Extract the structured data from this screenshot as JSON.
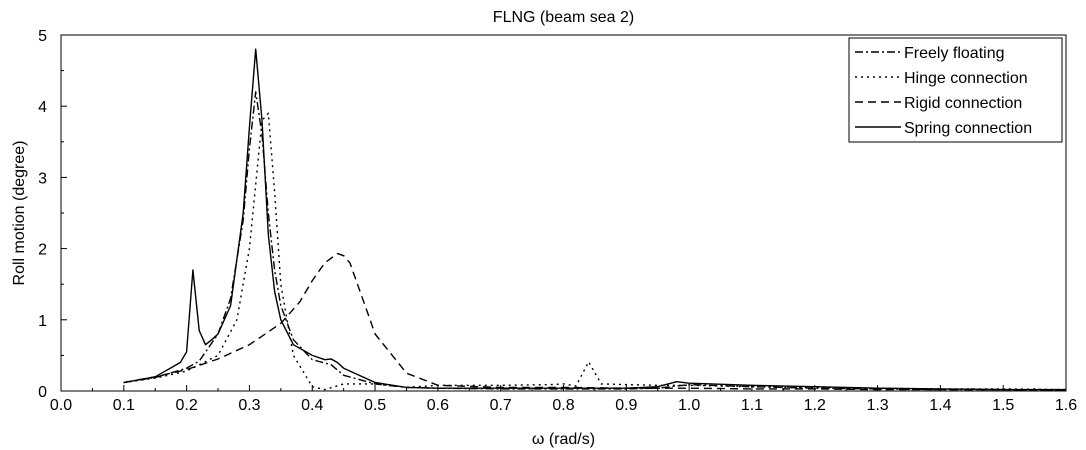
{
  "chart_data": {
    "type": "line",
    "title": "FLNG (beam sea 2)",
    "xlabel": "ω (rad/s)",
    "ylabel": "Roll motion (degree)",
    "xlim": [
      0.0,
      1.6
    ],
    "ylim": [
      0,
      5
    ],
    "x_ticks": [
      "0.0",
      "0.1",
      "0.2",
      "0.3",
      "0.4",
      "0.5",
      "0.6",
      "0.7",
      "0.8",
      "0.9",
      "1.0",
      "1.1",
      "1.2",
      "1.3",
      "1.4",
      "1.5",
      "1.6"
    ],
    "y_ticks": [
      "0",
      "1",
      "2",
      "3",
      "4",
      "5"
    ],
    "grid": false,
    "legend_position": "top-right",
    "series": [
      {
        "name": "Freely floating",
        "dash": "dashdot",
        "x": [
          0.1,
          0.15,
          0.2,
          0.22,
          0.25,
          0.27,
          0.29,
          0.3,
          0.31,
          0.32,
          0.33,
          0.34,
          0.35,
          0.37,
          0.4,
          0.43,
          0.45,
          0.5,
          0.55,
          0.6,
          0.7,
          0.8,
          0.9,
          0.95,
          0.98,
          1.0,
          1.1,
          1.2,
          1.3,
          1.4,
          1.5,
          1.6
        ],
        "y": [
          0.12,
          0.19,
          0.32,
          0.42,
          0.8,
          1.3,
          2.4,
          3.4,
          4.2,
          3.6,
          2.5,
          1.7,
          1.2,
          0.72,
          0.44,
          0.37,
          0.22,
          0.1,
          0.05,
          0.04,
          0.03,
          0.03,
          0.03,
          0.04,
          0.07,
          0.09,
          0.06,
          0.04,
          0.03,
          0.02,
          0.02,
          0.01
        ]
      },
      {
        "name": "Hinge connection",
        "dash": "dotted",
        "x": [
          0.1,
          0.15,
          0.2,
          0.25,
          0.28,
          0.3,
          0.31,
          0.32,
          0.33,
          0.34,
          0.35,
          0.37,
          0.4,
          0.42,
          0.45,
          0.5,
          0.55,
          0.6,
          0.7,
          0.78,
          0.8,
          0.82,
          0.84,
          0.86,
          0.9,
          0.95,
          1.0,
          1.1,
          1.2,
          1.3,
          1.4,
          1.5,
          1.6
        ],
        "y": [
          0.12,
          0.18,
          0.28,
          0.5,
          1.0,
          2.0,
          2.9,
          3.8,
          3.9,
          2.8,
          1.5,
          0.5,
          0.06,
          0.02,
          0.1,
          0.1,
          0.05,
          0.08,
          0.08,
          0.09,
          0.1,
          0.07,
          0.41,
          0.1,
          0.09,
          0.08,
          0.08,
          0.06,
          0.05,
          0.04,
          0.03,
          0.03,
          0.02
        ]
      },
      {
        "name": "Rigid connection",
        "dash": "dashed",
        "x": [
          0.1,
          0.15,
          0.2,
          0.25,
          0.3,
          0.35,
          0.38,
          0.4,
          0.42,
          0.44,
          0.45,
          0.46,
          0.48,
          0.5,
          0.55,
          0.6,
          0.7,
          0.8,
          0.9,
          1.0,
          1.1,
          1.2,
          1.3,
          1.4,
          1.5,
          1.6
        ],
        "y": [
          0.12,
          0.2,
          0.3,
          0.45,
          0.65,
          0.95,
          1.25,
          1.55,
          1.8,
          1.93,
          1.9,
          1.8,
          1.3,
          0.8,
          0.25,
          0.08,
          0.05,
          0.05,
          0.04,
          0.04,
          0.03,
          0.03,
          0.02,
          0.02,
          0.02,
          0.01
        ]
      },
      {
        "name": "Spring connection",
        "dash": "solid",
        "x": [
          0.1,
          0.15,
          0.19,
          0.2,
          0.21,
          0.22,
          0.23,
          0.24,
          0.25,
          0.27,
          0.29,
          0.3,
          0.31,
          0.32,
          0.33,
          0.34,
          0.35,
          0.37,
          0.4,
          0.42,
          0.43,
          0.44,
          0.45,
          0.5,
          0.55,
          0.6,
          0.7,
          0.8,
          0.9,
          0.95,
          0.98,
          1.0,
          1.1,
          1.2,
          1.3,
          1.4,
          1.5,
          1.6
        ],
        "y": [
          0.12,
          0.2,
          0.4,
          0.55,
          1.7,
          0.85,
          0.65,
          0.72,
          0.8,
          1.2,
          2.5,
          3.7,
          4.8,
          3.8,
          2.2,
          1.4,
          1.0,
          0.65,
          0.5,
          0.44,
          0.45,
          0.4,
          0.32,
          0.12,
          0.05,
          0.04,
          0.04,
          0.04,
          0.04,
          0.06,
          0.13,
          0.11,
          0.08,
          0.06,
          0.04,
          0.03,
          0.02,
          0.02
        ]
      }
    ]
  }
}
